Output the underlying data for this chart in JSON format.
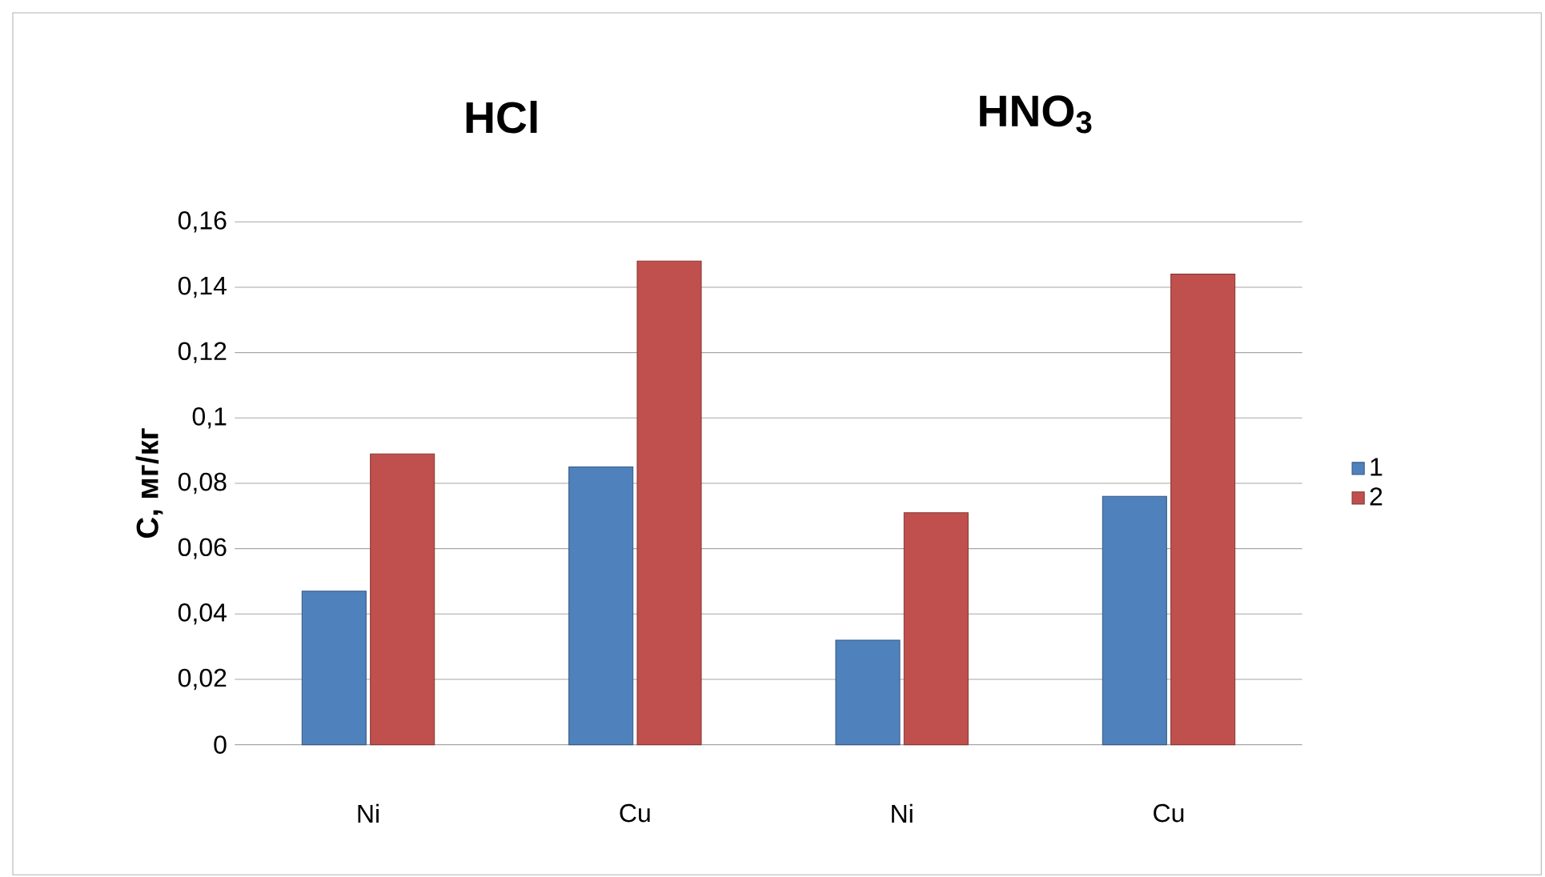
{
  "chart_data": {
    "type": "bar",
    "annotations": [
      "HCl",
      "HNO$_{3}$"
    ],
    "ylabel": "C, мг/кг",
    "categories": [
      "Ni",
      "Cu",
      "Ni",
      "Cu"
    ],
    "series": [
      {
        "name": "1",
        "color": "#4f81bd",
        "values": [
          0.047,
          0.085,
          0.032,
          0.076
        ]
      },
      {
        "name": "2",
        "color": "#c0504d",
        "values": [
          0.089,
          0.148,
          0.071,
          0.144
        ]
      }
    ],
    "ylim": [
      0,
      0.16
    ],
    "yticks": [
      0,
      {
        "value": 0.02,
        "label": "0,02"
      },
      {
        "value": 0.04,
        "label": "0,04"
      },
      {
        "value": 0.06,
        "label": "0,06"
      },
      {
        "value": 0.08,
        "label": "0,08"
      },
      {
        "value": 0.1,
        "label": "0,1"
      },
      {
        "value": 0.12,
        "label": "0,12"
      },
      {
        "value": 0.14,
        "label": "0,14"
      },
      {
        "value": 0.16,
        "label": "0,16"
      }
    ],
    "grid": "y",
    "legend": "right"
  }
}
